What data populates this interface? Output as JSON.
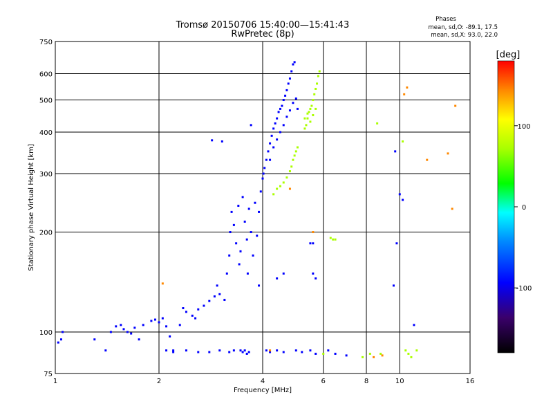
{
  "chart_data": {
    "type": "scatter",
    "title": "Tromsø 20150706 15:40:00—15:41:43",
    "subtitle": "RwPretec (8p)",
    "xlabel": "Frequency [MHz]",
    "ylabel": "Stationary phase Virtual Height [km]",
    "xscale": "log",
    "yscale": "log",
    "xlim": [
      1,
      16
    ],
    "ylim": [
      75,
      750
    ],
    "x_ticks": [
      1,
      2,
      4,
      6,
      8,
      10,
      16
    ],
    "y_ticks": [
      75,
      100,
      200,
      300,
      400,
      500,
      600,
      750
    ],
    "grid": true,
    "phase_info": {
      "heading": "Phases",
      "line_o": "mean, sd,O: -89.1, 17.5",
      "line_x": "mean, sd,X:  93.0, 22.0"
    },
    "colorbar": {
      "label": "[deg]",
      "range": [
        -180,
        180
      ],
      "ticks": [
        100,
        0,
        -100
      ],
      "tick_labels": [
        "100",
        "0",
        "-100"
      ]
    },
    "series": [
      {
        "mode": "O",
        "phase_deg": -95,
        "points": [
          [
            1.02,
            93
          ],
          [
            1.04,
            95
          ],
          [
            1.05,
            100
          ],
          [
            1.3,
            95
          ],
          [
            1.4,
            88
          ],
          [
            1.45,
            100
          ],
          [
            1.5,
            104
          ],
          [
            1.55,
            105
          ],
          [
            1.58,
            102
          ],
          [
            1.62,
            100
          ],
          [
            1.66,
            99
          ],
          [
            1.7,
            103
          ],
          [
            1.75,
            95
          ],
          [
            1.8,
            105
          ],
          [
            1.9,
            108
          ],
          [
            1.95,
            109
          ],
          [
            2.0,
            107
          ],
          [
            2.05,
            110
          ],
          [
            2.1,
            104
          ],
          [
            2.15,
            97
          ],
          [
            2.2,
            88
          ],
          [
            2.3,
            105
          ],
          [
            2.35,
            118
          ],
          [
            2.4,
            115
          ],
          [
            2.5,
            112
          ],
          [
            2.55,
            110
          ],
          [
            2.6,
            117
          ],
          [
            2.7,
            120
          ],
          [
            2.8,
            124
          ],
          [
            2.9,
            128
          ],
          [
            2.95,
            138
          ],
          [
            3.0,
            130
          ],
          [
            3.1,
            125
          ],
          [
            3.15,
            150
          ],
          [
            3.2,
            170
          ],
          [
            3.22,
            200
          ],
          [
            3.25,
            230
          ],
          [
            3.3,
            210
          ],
          [
            3.35,
            185
          ],
          [
            3.4,
            240
          ],
          [
            3.42,
            160
          ],
          [
            3.45,
            175
          ],
          [
            3.5,
            255
          ],
          [
            3.55,
            215
          ],
          [
            3.6,
            190
          ],
          [
            3.62,
            150
          ],
          [
            3.65,
            235
          ],
          [
            3.7,
            200
          ],
          [
            3.75,
            170
          ],
          [
            3.8,
            245
          ],
          [
            3.85,
            195
          ],
          [
            3.9,
            230
          ],
          [
            3.95,
            265
          ],
          [
            4.0,
            290
          ],
          [
            4.02,
            300
          ],
          [
            4.05,
            312
          ],
          [
            4.1,
            330
          ],
          [
            4.15,
            350
          ],
          [
            4.2,
            370
          ],
          [
            4.25,
            390
          ],
          [
            4.3,
            410
          ],
          [
            4.35,
            425
          ],
          [
            4.4,
            440
          ],
          [
            4.45,
            460
          ],
          [
            4.5,
            470
          ],
          [
            4.55,
            480
          ],
          [
            4.6,
            500
          ],
          [
            4.65,
            515
          ],
          [
            4.7,
            535
          ],
          [
            4.75,
            560
          ],
          [
            4.8,
            580
          ],
          [
            4.85,
            610
          ],
          [
            4.9,
            640
          ],
          [
            4.95,
            650
          ],
          [
            4.2,
            330
          ],
          [
            4.3,
            360
          ],
          [
            4.4,
            380
          ],
          [
            4.5,
            400
          ],
          [
            4.6,
            420
          ],
          [
            4.7,
            445
          ],
          [
            4.8,
            465
          ],
          [
            4.9,
            490
          ],
          [
            5.0,
            505
          ],
          [
            5.05,
            470
          ],
          [
            3.05,
            375
          ],
          [
            2.85,
            378
          ],
          [
            5.5,
            185
          ],
          [
            5.6,
            185
          ],
          [
            5.6,
            150
          ],
          [
            5.7,
            145
          ],
          [
            3.45,
            88
          ],
          [
            3.5,
            87
          ],
          [
            3.55,
            88
          ],
          [
            3.6,
            86
          ],
          [
            3.65,
            87
          ],
          [
            3.3,
            88
          ],
          [
            3.2,
            87
          ],
          [
            3.0,
            88
          ],
          [
            2.8,
            87
          ],
          [
            2.6,
            87
          ],
          [
            2.4,
            88
          ],
          [
            2.2,
            87
          ],
          [
            2.1,
            88
          ],
          [
            4.1,
            88
          ],
          [
            4.2,
            87
          ],
          [
            4.4,
            88
          ],
          [
            4.6,
            87
          ],
          [
            5.0,
            88
          ],
          [
            5.2,
            87
          ],
          [
            5.5,
            88
          ],
          [
            5.7,
            86
          ],
          [
            6.2,
            88
          ],
          [
            6.5,
            86
          ],
          [
            7.0,
            85
          ],
          [
            9.7,
            350
          ],
          [
            9.8,
            185
          ],
          [
            10.0,
            260
          ],
          [
            10.2,
            250
          ],
          [
            9.6,
            138
          ],
          [
            11.0,
            105
          ],
          [
            4.6,
            150
          ],
          [
            4.4,
            145
          ],
          [
            3.9,
            138
          ],
          [
            3.7,
            420
          ]
        ]
      },
      {
        "mode": "X",
        "phase_deg": 93,
        "points": [
          [
            4.3,
            260
          ],
          [
            4.4,
            270
          ],
          [
            4.5,
            275
          ],
          [
            4.6,
            282
          ],
          [
            4.7,
            292
          ],
          [
            4.8,
            305
          ],
          [
            4.85,
            315
          ],
          [
            4.9,
            330
          ],
          [
            4.95,
            340
          ],
          [
            5.0,
            350
          ],
          [
            5.05,
            360
          ],
          [
            5.3,
            410
          ],
          [
            5.35,
            420
          ],
          [
            5.4,
            440
          ],
          [
            5.45,
            460
          ],
          [
            5.5,
            470
          ],
          [
            5.55,
            480
          ],
          [
            5.6,
            500
          ],
          [
            5.65,
            520
          ],
          [
            5.7,
            540
          ],
          [
            5.75,
            560
          ],
          [
            5.8,
            590
          ],
          [
            5.85,
            610
          ],
          [
            5.5,
            430
          ],
          [
            5.6,
            450
          ],
          [
            5.7,
            470
          ],
          [
            5.3,
            440
          ],
          [
            5.4,
            455
          ],
          [
            6.3,
            192
          ],
          [
            6.4,
            190
          ],
          [
            6.5,
            190
          ],
          [
            10.2,
            375
          ],
          [
            8.6,
            425
          ],
          [
            10.4,
            88
          ],
          [
            10.6,
            86
          ],
          [
            10.8,
            84
          ],
          [
            11.2,
            88
          ],
          [
            7.8,
            84
          ],
          [
            8.2,
            86
          ],
          [
            8.8,
            86
          ],
          [
            6.0,
            86
          ]
        ]
      },
      {
        "mode": "other",
        "phase_deg": 165,
        "points": [
          [
            2.05,
            140
          ],
          [
            4.8,
            270
          ],
          [
            5.6,
            200
          ],
          [
            4.2,
            88
          ],
          [
            8.4,
            84
          ],
          [
            8.9,
            85
          ],
          [
            12.0,
            330
          ],
          [
            13.8,
            345
          ],
          [
            14.5,
            480
          ],
          [
            14.2,
            235
          ],
          [
            10.5,
            545
          ],
          [
            10.3,
            520
          ]
        ]
      }
    ]
  }
}
